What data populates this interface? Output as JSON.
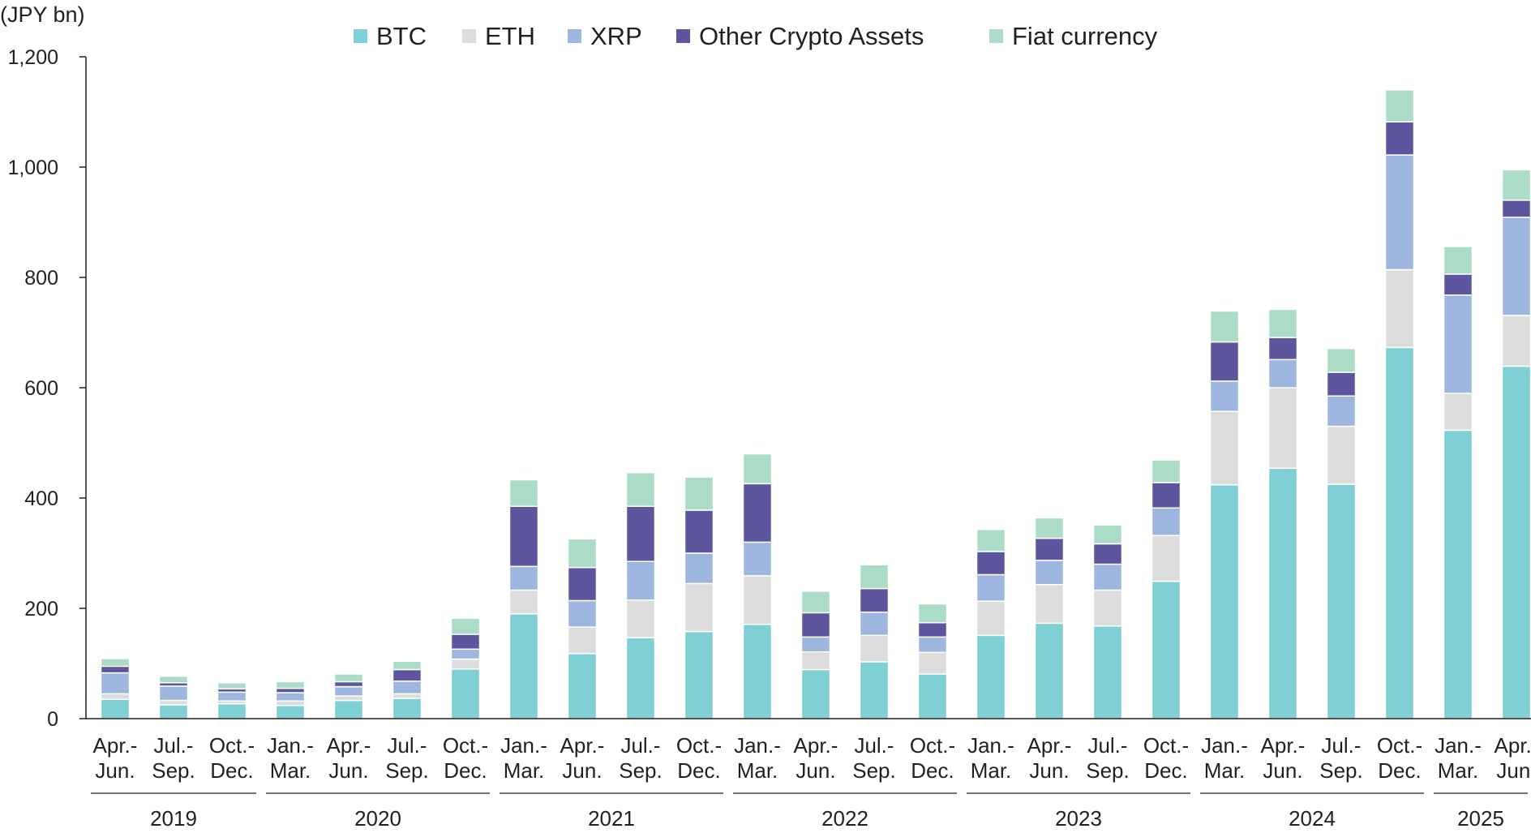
{
  "chart_data": {
    "type": "bar",
    "stacked": true,
    "ylabel": "(JPY bn)",
    "ylim": [
      0,
      1200
    ],
    "yticks": [
      0,
      200,
      400,
      600,
      800,
      1000,
      1200
    ],
    "ytick_labels": [
      "0",
      "200",
      "400",
      "600",
      "800",
      "1,000",
      "1,200"
    ],
    "legend_position": "top",
    "colors": {
      "BTC": "#7fd0d4",
      "ETH": "#dcdcdd",
      "XRP": "#9cb6df",
      "Other Crypto Assets": "#5d569f",
      "Fiat currency": "#abdcc6"
    },
    "categories": [
      [
        "Apr.-",
        "Jun."
      ],
      [
        "Jul.-",
        "Sep."
      ],
      [
        "Oct.-",
        "Dec."
      ],
      [
        "Jan.-",
        "Mar."
      ],
      [
        "Apr.-",
        "Jun."
      ],
      [
        "Jul.-",
        "Sep."
      ],
      [
        "Oct.-",
        "Dec."
      ],
      [
        "Jan.-",
        "Mar."
      ],
      [
        "Apr.-",
        "Jun."
      ],
      [
        "Jul.-",
        "Sep."
      ],
      [
        "Oct.-",
        "Dec."
      ],
      [
        "Jan.-",
        "Mar."
      ],
      [
        "Apr.-",
        "Jun."
      ],
      [
        "Jul.-",
        "Sep."
      ],
      [
        "Oct.-",
        "Dec."
      ],
      [
        "Jan.-",
        "Mar."
      ],
      [
        "Apr.-",
        "Jun."
      ],
      [
        "Jul.-",
        "Sep."
      ],
      [
        "Oct.-",
        "Dec."
      ],
      [
        "Jan.-",
        "Mar."
      ],
      [
        "Apr.-",
        "Jun."
      ],
      [
        "Jul.-",
        "Sep."
      ],
      [
        "Oct.-",
        "Dec."
      ],
      [
        "Jan.-",
        "Mar."
      ],
      [
        "Apr.-",
        "Jun."
      ]
    ],
    "year_groups": [
      {
        "label": "2019",
        "start": 0,
        "end": 2
      },
      {
        "label": "2020",
        "start": 3,
        "end": 6
      },
      {
        "label": "2021",
        "start": 7,
        "end": 10
      },
      {
        "label": "2022",
        "start": 11,
        "end": 14
      },
      {
        "label": "2023",
        "start": 15,
        "end": 18
      },
      {
        "label": "2024",
        "start": 19,
        "end": 22
      },
      {
        "label": "2025",
        "start": 23,
        "end": 24
      }
    ],
    "series": [
      {
        "name": "BTC",
        "values": [
          35,
          25,
          27,
          24,
          33,
          37,
          90,
          190,
          118,
          147,
          158,
          171,
          89,
          103,
          81,
          151,
          173,
          168,
          249,
          424,
          454,
          425,
          673,
          523,
          639
        ]
      },
      {
        "name": "ETH",
        "values": [
          10,
          8,
          5,
          8,
          8,
          8,
          18,
          43,
          48,
          68,
          87,
          88,
          32,
          48,
          39,
          62,
          70,
          65,
          83,
          133,
          146,
          105,
          141,
          67,
          92
        ]
      },
      {
        "name": "XRP",
        "values": [
          38,
          26,
          16,
          15,
          17,
          23,
          18,
          43,
          48,
          70,
          55,
          61,
          27,
          42,
          28,
          48,
          44,
          47,
          50,
          55,
          51,
          55,
          208,
          178,
          178
        ]
      },
      {
        "name": "Other Crypto Assets",
        "values": [
          12,
          6,
          6,
          8,
          9,
          21,
          27,
          109,
          60,
          100,
          78,
          106,
          44,
          43,
          26,
          42,
          40,
          37,
          46,
          71,
          40,
          43,
          60,
          38,
          31
        ]
      },
      {
        "name": "Fiat currency",
        "values": [
          14,
          12,
          11,
          12,
          14,
          15,
          29,
          48,
          52,
          61,
          60,
          54,
          39,
          43,
          34,
          40,
          37,
          34,
          41,
          56,
          51,
          43,
          58,
          50,
          55
        ]
      }
    ]
  }
}
